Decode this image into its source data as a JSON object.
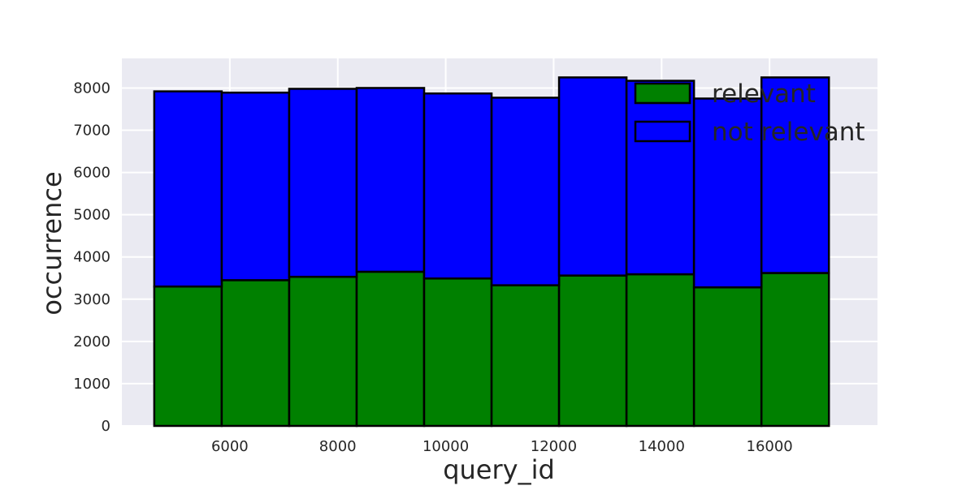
{
  "chart_data": {
    "type": "bar",
    "stacked": true,
    "histogram": true,
    "xlabel": "query_id",
    "ylabel": "occurrence",
    "xlim": [
      4000,
      18000
    ],
    "ylim": [
      0,
      8700
    ],
    "xticks": [
      6000,
      8000,
      10000,
      12000,
      14000,
      16000
    ],
    "yticks": [
      0,
      1000,
      2000,
      3000,
      4000,
      5000,
      6000,
      7000,
      8000
    ],
    "bin_edges": [
      4600,
      5850,
      7100,
      8350,
      9600,
      10850,
      12100,
      13350,
      14600,
      15850,
      17100
    ],
    "series": [
      {
        "name": "relevant",
        "color": "#008000",
        "values": [
          3300,
          3450,
          3530,
          3650,
          3490,
          3330,
          3560,
          3590,
          3280,
          3620
        ]
      },
      {
        "name": "not relevant",
        "color": "#0000ff",
        "values": [
          4620,
          4440,
          4450,
          4350,
          4380,
          4440,
          4690,
          4580,
          4470,
          4630
        ]
      }
    ],
    "grid": true,
    "legend_position": "top-right",
    "background_color": "#eaeaf2",
    "edge_color": "#000000"
  }
}
